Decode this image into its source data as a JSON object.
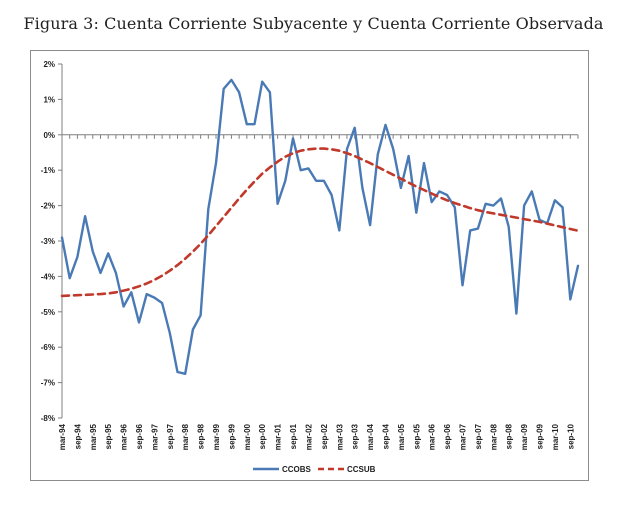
{
  "title": "Figura 3: Cuenta Corriente Subyacente y Cuenta Corriente Observada",
  "chart_data": {
    "type": "line",
    "title": "Figura 3: Cuenta Corriente Subyacente y Cuenta Corriente Observada",
    "xlabel": "",
    "ylabel": "",
    "ylim": [
      -8,
      2
    ],
    "yticks": [
      2,
      1,
      0,
      -1,
      -2,
      -3,
      -4,
      -5,
      -6,
      -7,
      -8
    ],
    "ytick_labels": [
      "2%",
      "1%",
      "0%",
      "-1%",
      "-2%",
      "-3%",
      "-4%",
      "-5%",
      "-6%",
      "-7%",
      "-8%"
    ],
    "xtick_labels": [
      "mar-94",
      "sep-94",
      "mar-95",
      "sep-95",
      "mar-96",
      "sep-96",
      "mar-97",
      "sep-97",
      "mar-98",
      "sep-98",
      "mar-99",
      "sep-99",
      "mar-00",
      "sep-00",
      "mar-01",
      "sep-01",
      "mar-02",
      "sep-02",
      "mar-03",
      "sep-03",
      "mar-04",
      "sep-04",
      "mar-05",
      "sep-05",
      "mar-06",
      "sep-06",
      "mar-07",
      "sep-07",
      "mar-08",
      "sep-08",
      "mar-09",
      "sep-09",
      "mar-10",
      "sep-10"
    ],
    "legend_position": "bottom-center",
    "series": [
      {
        "name": "CCOBS",
        "color": "#4a7ab5",
        "style": "solid",
        "values": [
          -2.9,
          -4.05,
          -3.45,
          -2.3,
          -3.3,
          -3.9,
          -3.35,
          -3.9,
          -4.85,
          -4.45,
          -5.3,
          -4.5,
          -4.6,
          -4.75,
          -5.6,
          -6.7,
          -6.75,
          -5.5,
          -5.1,
          -2.1,
          -0.8,
          1.3,
          1.55,
          1.2,
          0.3,
          0.3,
          1.5,
          1.2,
          -1.95,
          -1.3,
          -0.1,
          -1.0,
          -0.95,
          -1.3,
          -1.3,
          -1.7,
          -2.7,
          -0.4,
          0.2,
          -1.5,
          -2.55,
          -0.55,
          0.28,
          -0.4,
          -1.5,
          -0.6,
          -2.2,
          -0.8,
          -1.9,
          -1.6,
          -1.7,
          -2.05,
          -4.25,
          -2.7,
          -2.65,
          -1.95,
          -2.0,
          -1.8,
          -2.6,
          -5.05,
          -2.0,
          -1.6,
          -2.4,
          -2.5,
          -1.85,
          -2.05,
          -4.65,
          -3.7
        ]
      },
      {
        "name": "CCSUB",
        "color": "#c0392b",
        "style": "dashed",
        "values": [
          -4.55,
          -4.54,
          -4.53,
          -4.52,
          -4.51,
          -4.5,
          -4.48,
          -4.45,
          -4.4,
          -4.35,
          -4.28,
          -4.2,
          -4.1,
          -3.98,
          -3.84,
          -3.68,
          -3.5,
          -3.3,
          -3.08,
          -2.84,
          -2.58,
          -2.32,
          -2.06,
          -1.8,
          -1.55,
          -1.32,
          -1.1,
          -0.92,
          -0.76,
          -0.62,
          -0.52,
          -0.45,
          -0.41,
          -0.39,
          -0.39,
          -0.41,
          -0.45,
          -0.52,
          -0.6,
          -0.7,
          -0.8,
          -0.91,
          -1.02,
          -1.13,
          -1.24,
          -1.35,
          -1.46,
          -1.56,
          -1.66,
          -1.76,
          -1.85,
          -1.93,
          -2.0,
          -2.07,
          -2.13,
          -2.18,
          -2.22,
          -2.26,
          -2.3,
          -2.34,
          -2.38,
          -2.42,
          -2.46,
          -2.51,
          -2.56,
          -2.61,
          -2.66,
          -2.71
        ]
      }
    ]
  }
}
